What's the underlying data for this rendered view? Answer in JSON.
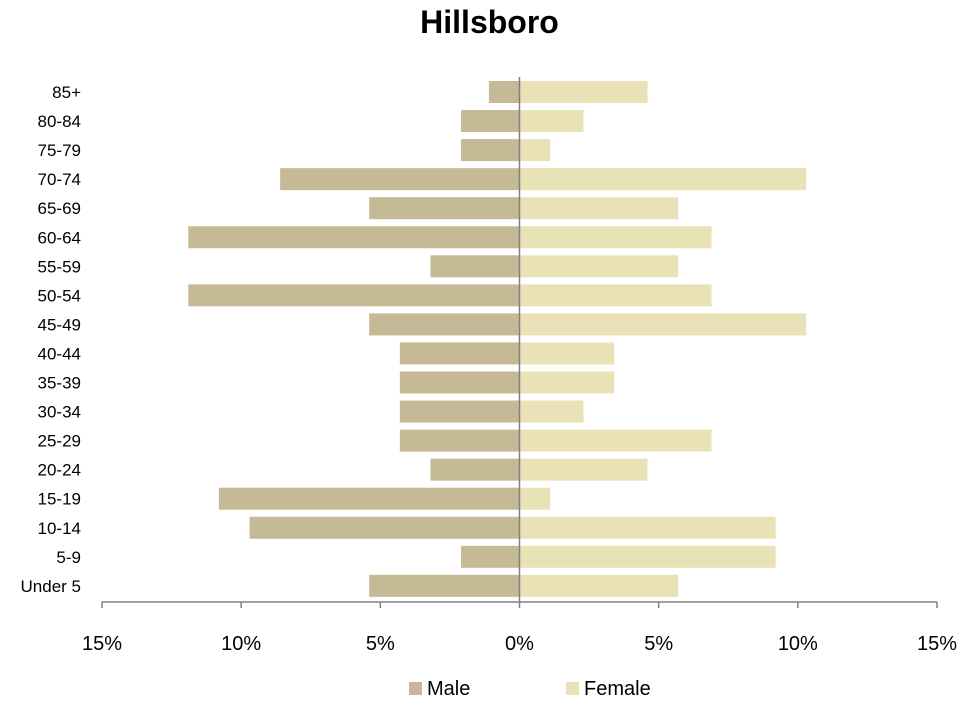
{
  "chart_data": {
    "type": "bar",
    "orientation": "horizontal",
    "title": "Hillsboro",
    "categories": [
      "85+",
      "80-84",
      "75-79",
      "70-74",
      "65-69",
      "60-64",
      "55-59",
      "50-54",
      "45-49",
      "40-44",
      "35-39",
      "30-34",
      "25-29",
      "20-24",
      "15-19",
      "10-14",
      "5-9",
      "Under 5"
    ],
    "series": [
      {
        "name": "Male",
        "values": [
          1.1,
          2.1,
          2.1,
          8.6,
          5.4,
          11.9,
          3.2,
          11.9,
          5.4,
          4.3,
          4.3,
          4.3,
          4.3,
          3.2,
          10.8,
          9.7,
          2.1,
          5.4
        ],
        "color": "#c6b995"
      },
      {
        "name": "Female",
        "values": [
          4.6,
          2.3,
          1.1,
          10.3,
          5.7,
          6.9,
          5.7,
          6.9,
          10.3,
          3.4,
          3.4,
          2.3,
          6.9,
          4.6,
          1.1,
          9.2,
          9.2,
          5.7
        ],
        "color": "#e8e2b6"
      }
    ],
    "xlim": [
      -15,
      15
    ],
    "x_ticks": [
      "15%",
      "10%",
      "5%",
      "0%",
      "5%",
      "10%",
      "15%"
    ],
    "x_tick_values": [
      -15,
      -10,
      -5,
      0,
      5,
      10,
      15
    ],
    "grid": false,
    "legend": "bottom"
  }
}
